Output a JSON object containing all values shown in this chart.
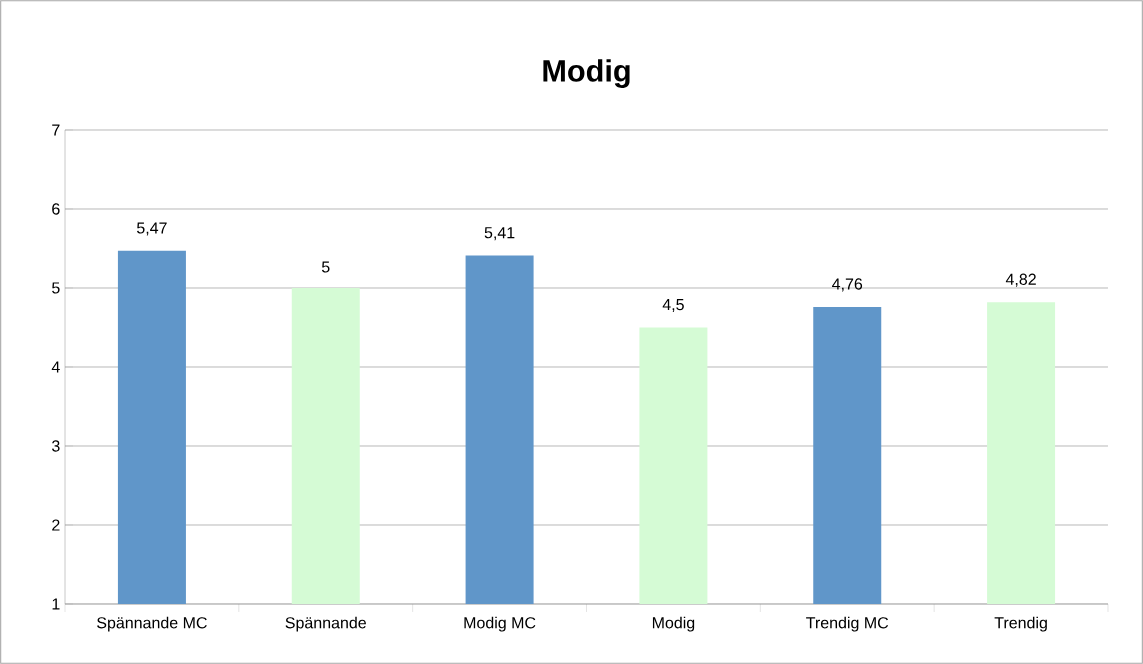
{
  "chart_data": {
    "type": "bar",
    "title": "Modig",
    "categories": [
      "Spännande MC",
      "Spännande",
      "Modig MC",
      "Modig",
      "Trendig MC",
      "Trendig"
    ],
    "values": [
      5.47,
      5,
      5.41,
      4.5,
      4.76,
      4.82
    ],
    "colors": [
      "#6096c9",
      "#d5fbd5",
      "#6096c9",
      "#d5fbd5",
      "#6096c9",
      "#d5fbd5"
    ],
    "value_labels": [
      "5,47",
      "5",
      "5,41",
      "4,5",
      "4,76",
      "4,82"
    ],
    "ylim": [
      1,
      7
    ],
    "yticks": [
      1,
      2,
      3,
      4,
      5,
      6,
      7
    ],
    "grid": "y"
  }
}
